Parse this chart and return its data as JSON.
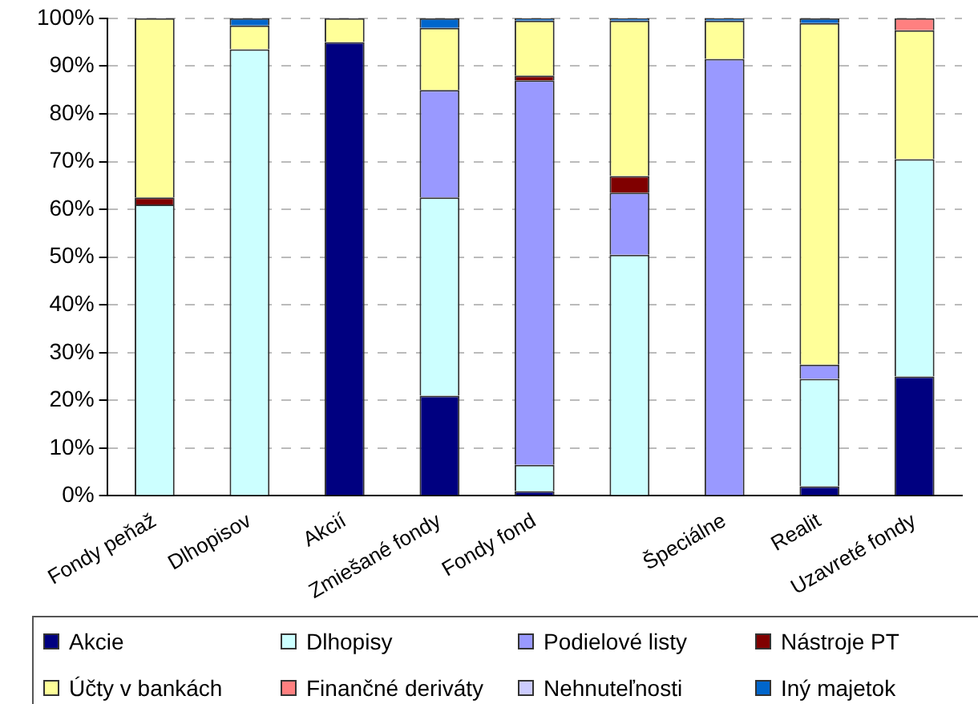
{
  "chart_data": {
    "type": "bar",
    "stacked": true,
    "categories": [
      "Fondy peňaž",
      "Dlhopisov",
      "Akcií",
      "Zmiešané fondy",
      "Fondy fond",
      null,
      "Špeciálne",
      "Realit",
      "Uzavreté fondy"
    ],
    "series": [
      {
        "name": "Akcie",
        "color": "#000080",
        "values": [
          0,
          0,
          95,
          21,
          1,
          0,
          0,
          2,
          25
        ]
      },
      {
        "name": "Dlhopisy",
        "color": "#ccffff",
        "values": [
          61,
          93.5,
          0,
          41.5,
          5.5,
          50.5,
          0,
          22.5,
          45.5
        ]
      },
      {
        "name": "Podielové listy",
        "color": "#9999ff",
        "values": [
          0,
          0,
          0,
          22.5,
          80.5,
          13,
          91.5,
          3,
          0
        ]
      },
      {
        "name": "Nástroje PT",
        "color": "#800000",
        "values": [
          1.5,
          0,
          0,
          0,
          1,
          3.5,
          0,
          0,
          0
        ]
      },
      {
        "name": "Účty v bankách",
        "color": "#ffff99",
        "values": [
          37.5,
          5,
          5,
          13,
          11.5,
          32.5,
          8,
          71.5,
          27
        ]
      },
      {
        "name": "Finančné deriváty",
        "color": "#ff8080",
        "values": [
          0,
          0,
          0,
          0,
          0,
          0,
          0,
          0,
          2.5
        ]
      },
      {
        "name": "Nehnuteľnosti",
        "color": "#ccccff",
        "values": [
          0,
          0,
          0,
          0,
          0,
          0,
          0,
          0,
          0
        ]
      },
      {
        "name": "Iný majetok",
        "color": "#0066cc",
        "values": [
          0,
          1.5,
          0,
          2,
          0.5,
          0.5,
          0.5,
          1,
          0
        ]
      }
    ],
    "ylim": [
      0,
      100
    ],
    "yticks": [
      {
        "value": 0,
        "label": "0%"
      },
      {
        "value": 10,
        "label": "10%"
      },
      {
        "value": 20,
        "label": "20%"
      },
      {
        "value": 30,
        "label": "30%"
      },
      {
        "value": 40,
        "label": "40%"
      },
      {
        "value": 50,
        "label": "50%"
      },
      {
        "value": 60,
        "label": "60%"
      },
      {
        "value": 70,
        "label": "70%"
      },
      {
        "value": 80,
        "label": "80%"
      },
      {
        "value": 90,
        "label": "90%"
      },
      {
        "value": 100,
        "label": "100%"
      }
    ],
    "grid": "y",
    "legend": "bottom"
  }
}
